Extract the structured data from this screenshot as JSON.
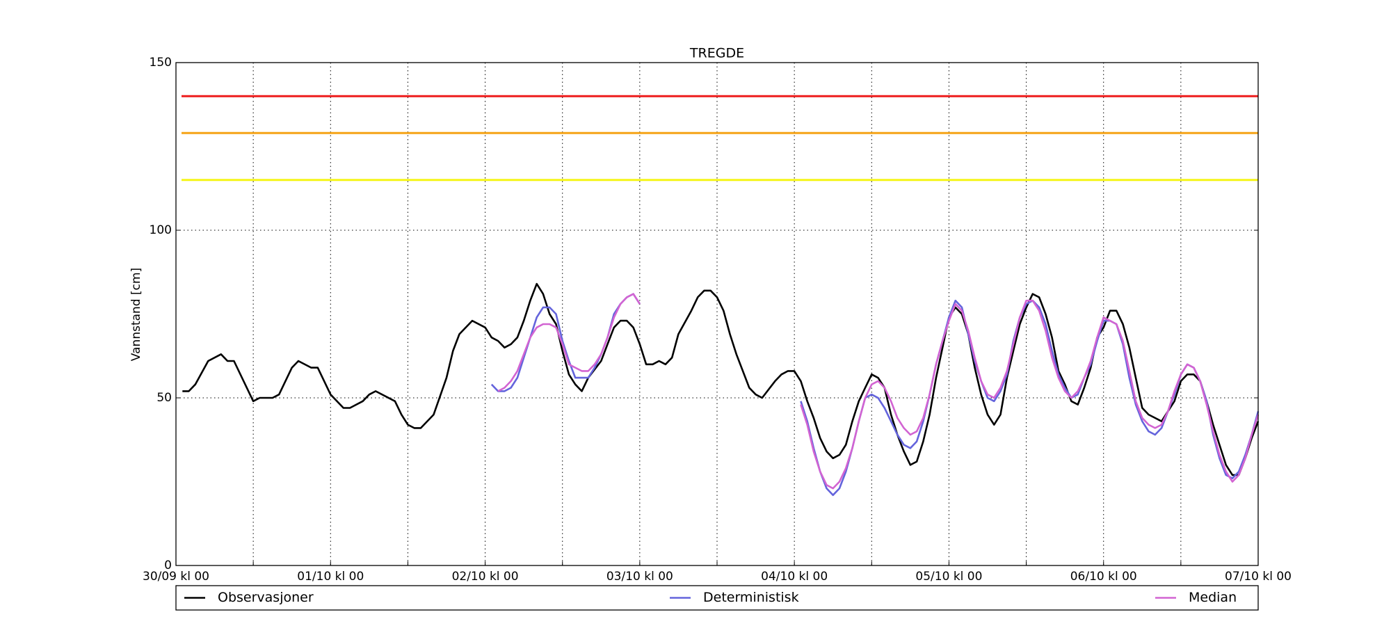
{
  "chart_data": {
    "type": "line",
    "title": "TREGDE",
    "y_label": "Vannstand [cm]",
    "xlim": [
      0,
      168
    ],
    "xticks": [
      {
        "value": 0,
        "label": "30/09 kl 00"
      },
      {
        "value": 24,
        "label": "01/10 kl 00"
      },
      {
        "value": 48,
        "label": "02/10 kl 00"
      },
      {
        "value": 72,
        "label": "03/10 kl 00"
      },
      {
        "value": 96,
        "label": "04/10 kl 00"
      },
      {
        "value": 120,
        "label": "05/10 kl 00"
      },
      {
        "value": 144,
        "label": "06/10 kl 00"
      },
      {
        "value": 168,
        "label": "07/10 kl 00"
      }
    ],
    "x_minor_ticks": [
      12,
      36,
      60,
      84,
      108,
      132,
      156
    ],
    "ylim": [
      0,
      150
    ],
    "yticks": [
      0,
      50,
      100,
      150
    ],
    "grid": true,
    "thresholds": [
      {
        "value": 140,
        "color": "#ee1c1c"
      },
      {
        "value": 129,
        "color": "#f5a316"
      },
      {
        "value": 115,
        "color": "#f5f516"
      }
    ],
    "series": [
      {
        "name": "Observasjoner",
        "color": "#000000",
        "x": [
          1,
          2,
          3,
          5,
          7,
          8,
          9,
          12,
          13,
          15,
          16,
          18,
          19,
          21,
          22,
          24,
          26,
          27,
          29,
          30,
          31,
          34,
          35,
          36,
          37,
          38,
          40,
          42,
          43,
          44,
          46,
          48,
          49,
          50,
          51,
          52,
          53,
          54,
          55,
          56,
          57,
          58,
          59,
          60,
          61,
          62,
          63,
          64,
          66,
          67,
          68,
          69,
          70,
          71,
          72,
          73,
          74,
          75,
          76,
          77,
          78,
          80,
          81,
          82,
          83,
          84,
          85,
          86,
          87,
          89,
          90,
          91,
          93,
          94,
          95,
          96,
          97,
          98,
          99,
          100,
          101,
          102,
          103,
          104,
          105,
          106,
          107,
          108,
          109,
          110,
          111,
          112,
          113,
          114,
          115,
          116,
          117,
          118,
          119,
          120,
          121,
          122,
          123,
          124,
          125,
          126,
          127,
          128,
          129,
          130,
          131,
          132,
          133,
          134,
          135,
          136,
          137,
          138,
          139,
          140,
          141,
          142,
          143,
          144,
          145,
          146,
          147,
          148,
          149,
          150,
          151,
          152,
          153,
          154,
          155,
          156,
          157,
          158,
          159,
          160,
          161,
          162,
          163,
          164,
          165,
          166,
          167,
          168
        ],
        "values": [
          52,
          52,
          54,
          61,
          63,
          61,
          61,
          49,
          50,
          50,
          51,
          59,
          61,
          59,
          59,
          51,
          47,
          47,
          49,
          51,
          52,
          49,
          45,
          42,
          41,
          41,
          45,
          56,
          64,
          69,
          73,
          71,
          68,
          67,
          65,
          66,
          68,
          73,
          79,
          84,
          81,
          75,
          72,
          64,
          57,
          54,
          52,
          56,
          61,
          66,
          71,
          73,
          73,
          71,
          66,
          60,
          60,
          61,
          60,
          62,
          69,
          76,
          80,
          82,
          82,
          80,
          76,
          69,
          63,
          53,
          51,
          50,
          55,
          57,
          58,
          58,
          55,
          49,
          44,
          38,
          34,
          32,
          33,
          36,
          43,
          49,
          53,
          57,
          56,
          53,
          45,
          39,
          34,
          30,
          31,
          37,
          45,
          56,
          65,
          74,
          77,
          75,
          69,
          59,
          51,
          45,
          42,
          45,
          56,
          64,
          72,
          77,
          81,
          80,
          75,
          68,
          58,
          54,
          49,
          48,
          53,
          59,
          68,
          71,
          76,
          76,
          72,
          65,
          56,
          47,
          45,
          44,
          43,
          46,
          49,
          55,
          57,
          57,
          55,
          49,
          42,
          36,
          30,
          27,
          27,
          32,
          38,
          43
        ]
      },
      {
        "name": "Deterministisk",
        "color": "#6464dc",
        "x": [
          49,
          50,
          51,
          52,
          53,
          54,
          55,
          56,
          57,
          58,
          59,
          60,
          61,
          62,
          63,
          64,
          65,
          66,
          67,
          68,
          69,
          70,
          71,
          72,
          84,
          97,
          98,
          99,
          100,
          101,
          102,
          103,
          104,
          105,
          106,
          107,
          108,
          109,
          110,
          111,
          112,
          113,
          114,
          115,
          116,
          117,
          118,
          119,
          120,
          121,
          122,
          123,
          124,
          125,
          126,
          127,
          128,
          129,
          130,
          131,
          132,
          133,
          134,
          135,
          136,
          137,
          138,
          139,
          140,
          141,
          142,
          143,
          144,
          145,
          146,
          147,
          148,
          149,
          150,
          151,
          152,
          153,
          154,
          155,
          156,
          157,
          158,
          159,
          160,
          161,
          162,
          163,
          164,
          165,
          166,
          167,
          168
        ],
        "values": [
          54,
          52,
          52,
          53,
          56,
          62,
          68,
          74,
          77,
          77,
          75,
          67,
          61,
          56,
          56,
          56,
          59,
          63,
          68,
          75,
          78,
          80,
          81,
          78,
          null,
          49,
          43,
          35,
          28,
          23,
          21,
          23,
          28,
          35,
          43,
          50,
          51,
          50,
          47,
          43,
          39,
          36,
          35,
          37,
          43,
          51,
          60,
          67,
          74,
          79,
          77,
          69,
          61,
          55,
          50,
          49,
          52,
          57,
          67,
          74,
          78,
          79,
          77,
          72,
          64,
          57,
          53,
          50,
          51,
          56,
          60,
          67,
          73,
          73,
          72,
          66,
          56,
          48,
          43,
          40,
          39,
          41,
          46,
          51,
          57,
          60,
          59,
          55,
          49,
          39,
          32,
          27,
          26,
          28,
          33,
          39,
          46
        ]
      },
      {
        "name": "Median",
        "color": "#d264d2",
        "x": [
          50,
          51,
          52,
          53,
          54,
          55,
          56,
          57,
          58,
          59,
          60,
          61,
          62,
          63,
          64,
          65,
          66,
          67,
          68,
          69,
          70,
          71,
          72,
          84,
          97,
          98,
          99,
          100,
          101,
          102,
          103,
          104,
          105,
          106,
          107,
          108,
          109,
          110,
          111,
          112,
          113,
          114,
          115,
          116,
          117,
          118,
          119,
          120,
          121,
          122,
          123,
          124,
          125,
          126,
          127,
          128,
          129,
          130,
          131,
          132,
          133,
          134,
          135,
          136,
          137,
          138,
          139,
          140,
          141,
          142,
          143,
          144,
          145,
          146,
          147,
          148,
          149,
          150,
          151,
          152,
          153,
          154,
          155,
          156,
          157,
          158,
          159,
          160,
          161,
          162,
          163,
          164,
          165,
          166,
          167,
          168
        ],
        "values": [
          52,
          53,
          55,
          58,
          63,
          68,
          71,
          72,
          72,
          71,
          66,
          60,
          59,
          58,
          58,
          60,
          63,
          68,
          74,
          78,
          80,
          81,
          78,
          null,
          48,
          42,
          34,
          28,
          24,
          23,
          25,
          29,
          35,
          43,
          50,
          54,
          55,
          53,
          49,
          44,
          41,
          39,
          40,
          44,
          51,
          60,
          67,
          73,
          78,
          76,
          70,
          62,
          55,
          51,
          50,
          53,
          58,
          66,
          74,
          79,
          79,
          76,
          70,
          62,
          56,
          52,
          50,
          52,
          56,
          61,
          68,
          74,
          73,
          72,
          67,
          58,
          49,
          44,
          42,
          41,
          42,
          46,
          52,
          57,
          60,
          59,
          55,
          48,
          40,
          33,
          28,
          25,
          27,
          32,
          39,
          45
        ]
      }
    ]
  }
}
